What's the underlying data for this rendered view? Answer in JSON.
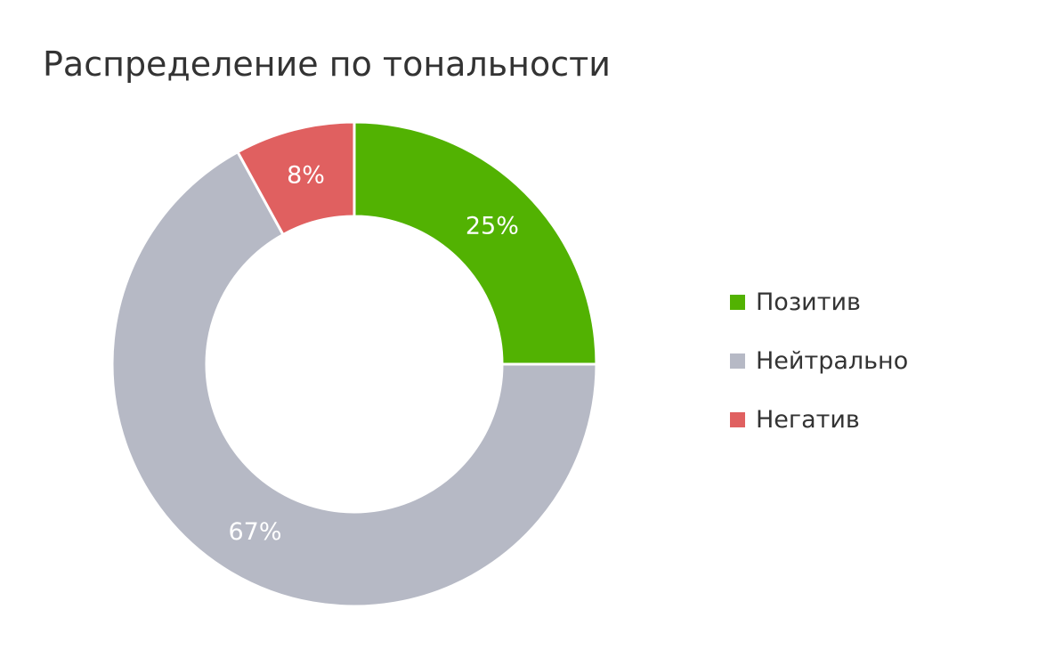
{
  "title": "Распределение по тональности",
  "chart_data": {
    "type": "pie",
    "donut": true,
    "categories": [
      "Позитив",
      "Нейтрально",
      "Негатив"
    ],
    "values": [
      25,
      67,
      8
    ],
    "labels": [
      "25%",
      "67%",
      "8%"
    ],
    "colors": [
      "#52b202",
      "#b6b9c5",
      "#e06060"
    ],
    "legend": "right"
  }
}
